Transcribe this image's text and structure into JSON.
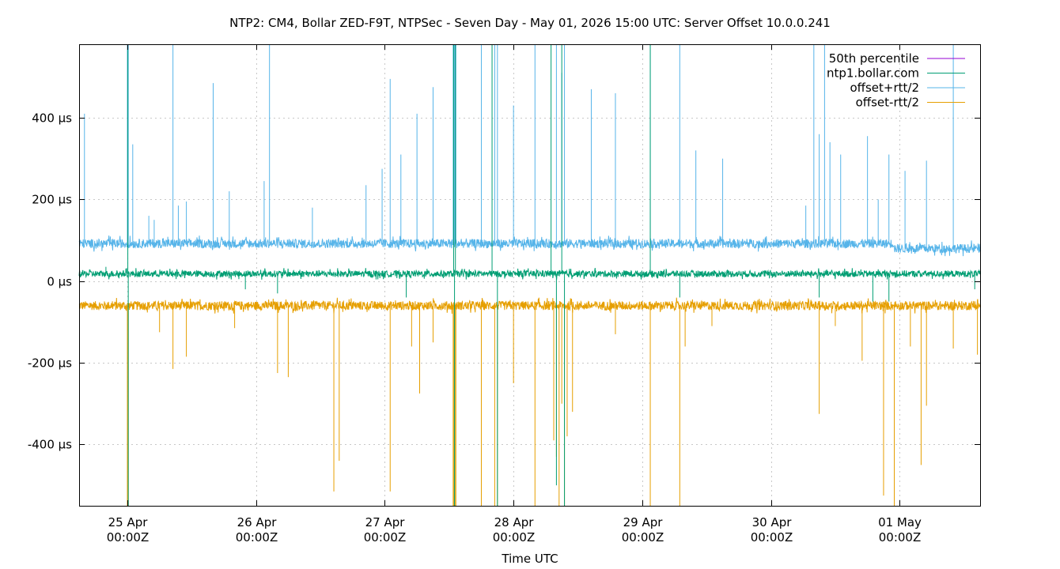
{
  "chart_data": {
    "type": "line",
    "title": "NTP2: CM4, Bollar ZED-F9T, NTPSec - Seven Day - May 01, 2026 15:00 UTC: Server Offset 10.0.0.241",
    "xlabel": "Time UTC",
    "ylabel": "",
    "x_range": [
      "2026-04-24T15:00Z",
      "2026-05-01T15:00Z"
    ],
    "ylim": [
      -550,
      580
    ],
    "y_unit": "µs",
    "y_ticks": [
      {
        "value": 400,
        "label": "400 µs"
      },
      {
        "value": 200,
        "label": "200 µs"
      },
      {
        "value": 0,
        "label": "0 µs"
      },
      {
        "value": -200,
        "label": "-200 µs"
      },
      {
        "value": -400,
        "label": "-400 µs"
      }
    ],
    "x_ticks": [
      {
        "t": "2026-04-25T00:00Z",
        "date": "25 Apr",
        "time": "00:00Z"
      },
      {
        "t": "2026-04-26T00:00Z",
        "date": "26 Apr",
        "time": "00:00Z"
      },
      {
        "t": "2026-04-27T00:00Z",
        "date": "27 Apr",
        "time": "00:00Z"
      },
      {
        "t": "2026-04-28T00:00Z",
        "date": "28 Apr",
        "time": "00:00Z"
      },
      {
        "t": "2026-04-29T00:00Z",
        "date": "29 Apr",
        "time": "00:00Z"
      },
      {
        "t": "2026-04-30T00:00Z",
        "date": "30 Apr",
        "time": "00:00Z"
      },
      {
        "t": "2026-05-01T00:00Z",
        "date": "01 May",
        "time": "00:00Z"
      }
    ],
    "grid": true,
    "legend_position": "top-right",
    "colors": {
      "p50": "#9400d3",
      "ntp1": "#009e73",
      "plus": "#56b4e9",
      "minus": "#e69f00",
      "grid": "#c8c8c8"
    },
    "series": [
      {
        "key": "p50",
        "name": "50th percentile",
        "style": "line-legend-only"
      },
      {
        "key": "ntp1",
        "name": "ntp1.bollar.com",
        "style": "noise-band",
        "baseline": 18,
        "noise": 8,
        "spikes": [
          {
            "t": "2026-04-24T20:00Z",
            "y": 35
          },
          {
            "t": "2026-04-25T00:05Z",
            "y": 580
          },
          {
            "t": "2026-04-25T00:10Z",
            "y": -550
          },
          {
            "t": "2026-04-25T22:00Z",
            "y": -20
          },
          {
            "t": "2026-04-26T04:00Z",
            "y": -30
          },
          {
            "t": "2026-04-27T04:00Z",
            "y": -40
          },
          {
            "t": "2026-04-27T12:50Z",
            "y": 580
          },
          {
            "t": "2026-04-27T13:00Z",
            "y": -550
          },
          {
            "t": "2026-04-27T13:10Z",
            "y": 580
          },
          {
            "t": "2026-04-27T20:00Z",
            "y": 580
          },
          {
            "t": "2026-04-27T21:00Z",
            "y": -550
          },
          {
            "t": "2026-04-28T07:00Z",
            "y": 580
          },
          {
            "t": "2026-04-28T08:00Z",
            "y": -500
          },
          {
            "t": "2026-04-28T09:00Z",
            "y": 580
          },
          {
            "t": "2026-04-28T09:30Z",
            "y": -550
          },
          {
            "t": "2026-04-29T01:30Z",
            "y": 580
          },
          {
            "t": "2026-04-29T07:00Z",
            "y": -40
          },
          {
            "t": "2026-04-30T09:00Z",
            "y": -40
          },
          {
            "t": "2026-04-30T19:00Z",
            "y": -50
          },
          {
            "t": "2026-04-30T22:00Z",
            "y": -50
          },
          {
            "t": "2026-05-01T14:00Z",
            "y": -20
          }
        ]
      },
      {
        "key": "plus",
        "name": "offset+rtt/2",
        "style": "noise-band",
        "baseline": 92,
        "baseline_after": {
          "t": "2026-04-30T23:00Z",
          "value": 80
        },
        "noise": 11,
        "spikes": [
          {
            "t": "2026-04-24T16:00Z",
            "y": 410
          },
          {
            "t": "2026-04-25T00:00Z",
            "y": 580
          },
          {
            "t": "2026-04-25T00:10Z",
            "y": 580
          },
          {
            "t": "2026-04-25T01:00Z",
            "y": 335
          },
          {
            "t": "2026-04-25T04:00Z",
            "y": 160
          },
          {
            "t": "2026-04-25T05:00Z",
            "y": 150
          },
          {
            "t": "2026-04-25T08:30Z",
            "y": 580
          },
          {
            "t": "2026-04-25T09:30Z",
            "y": 185
          },
          {
            "t": "2026-04-25T11:00Z",
            "y": 195
          },
          {
            "t": "2026-04-25T16:00Z",
            "y": 485
          },
          {
            "t": "2026-04-25T19:00Z",
            "y": 220
          },
          {
            "t": "2026-04-26T01:30Z",
            "y": 245
          },
          {
            "t": "2026-04-26T02:30Z",
            "y": 580
          },
          {
            "t": "2026-04-26T10:30Z",
            "y": 180
          },
          {
            "t": "2026-04-26T20:30Z",
            "y": 235
          },
          {
            "t": "2026-04-26T23:30Z",
            "y": 275
          },
          {
            "t": "2026-04-27T01:00Z",
            "y": 495
          },
          {
            "t": "2026-04-27T03:00Z",
            "y": 310
          },
          {
            "t": "2026-04-27T06:00Z",
            "y": 410
          },
          {
            "t": "2026-04-27T09:00Z",
            "y": 475
          },
          {
            "t": "2026-04-27T12:45Z",
            "y": 580
          },
          {
            "t": "2026-04-27T12:55Z",
            "y": 580
          },
          {
            "t": "2026-04-27T13:05Z",
            "y": 580
          },
          {
            "t": "2026-04-27T13:15Z",
            "y": 580
          },
          {
            "t": "2026-04-27T18:00Z",
            "y": 580
          },
          {
            "t": "2026-04-27T20:30Z",
            "y": 580
          },
          {
            "t": "2026-04-27T21:00Z",
            "y": 580
          },
          {
            "t": "2026-04-28T00:00Z",
            "y": 430
          },
          {
            "t": "2026-04-28T04:00Z",
            "y": 580
          },
          {
            "t": "2026-04-28T08:00Z",
            "y": 580
          },
          {
            "t": "2026-04-28T09:00Z",
            "y": 510
          },
          {
            "t": "2026-04-28T09:30Z",
            "y": 580
          },
          {
            "t": "2026-04-28T14:30Z",
            "y": 470
          },
          {
            "t": "2026-04-28T19:00Z",
            "y": 460
          },
          {
            "t": "2026-04-29T01:30Z",
            "y": 580
          },
          {
            "t": "2026-04-29T07:00Z",
            "y": 580
          },
          {
            "t": "2026-04-29T10:00Z",
            "y": 320
          },
          {
            "t": "2026-04-29T15:00Z",
            "y": 300
          },
          {
            "t": "2026-04-30T06:30Z",
            "y": 185
          },
          {
            "t": "2026-04-30T08:00Z",
            "y": 580
          },
          {
            "t": "2026-04-30T09:00Z",
            "y": 360
          },
          {
            "t": "2026-04-30T10:00Z",
            "y": 580
          },
          {
            "t": "2026-04-30T11:00Z",
            "y": 340
          },
          {
            "t": "2026-04-30T13:00Z",
            "y": 310
          },
          {
            "t": "2026-04-30T18:00Z",
            "y": 355
          },
          {
            "t": "2026-04-30T20:00Z",
            "y": 200
          },
          {
            "t": "2026-04-30T22:00Z",
            "y": 310
          },
          {
            "t": "2026-05-01T01:00Z",
            "y": 270
          },
          {
            "t": "2026-05-01T05:00Z",
            "y": 295
          },
          {
            "t": "2026-05-01T10:00Z",
            "y": 580
          }
        ]
      },
      {
        "key": "minus",
        "name": "offset-rtt/2",
        "style": "noise-band",
        "baseline": -60,
        "noise": 11,
        "spikes": [
          {
            "t": "2026-04-25T00:00Z",
            "y": -550
          },
          {
            "t": "2026-04-25T00:10Z",
            "y": -550
          },
          {
            "t": "2026-04-25T06:00Z",
            "y": -125
          },
          {
            "t": "2026-04-25T08:30Z",
            "y": -215
          },
          {
            "t": "2026-04-25T11:00Z",
            "y": -185
          },
          {
            "t": "2026-04-25T20:00Z",
            "y": -115
          },
          {
            "t": "2026-04-26T04:00Z",
            "y": -225
          },
          {
            "t": "2026-04-26T06:00Z",
            "y": -235
          },
          {
            "t": "2026-04-26T14:30Z",
            "y": -515
          },
          {
            "t": "2026-04-26T15:30Z",
            "y": -440
          },
          {
            "t": "2026-04-27T01:00Z",
            "y": -515
          },
          {
            "t": "2026-04-27T05:00Z",
            "y": -160
          },
          {
            "t": "2026-04-27T06:30Z",
            "y": -275
          },
          {
            "t": "2026-04-27T09:00Z",
            "y": -150
          },
          {
            "t": "2026-04-27T12:45Z",
            "y": -550
          },
          {
            "t": "2026-04-27T12:55Z",
            "y": -550
          },
          {
            "t": "2026-04-27T13:05Z",
            "y": -550
          },
          {
            "t": "2026-04-27T13:15Z",
            "y": -550
          },
          {
            "t": "2026-04-27T18:00Z",
            "y": -550
          },
          {
            "t": "2026-04-27T20:30Z",
            "y": -550
          },
          {
            "t": "2026-04-27T21:00Z",
            "y": -550
          },
          {
            "t": "2026-04-28T00:00Z",
            "y": -250
          },
          {
            "t": "2026-04-28T04:00Z",
            "y": -550
          },
          {
            "t": "2026-04-28T07:30Z",
            "y": -390
          },
          {
            "t": "2026-04-28T08:00Z",
            "y": -430
          },
          {
            "t": "2026-04-28T08:30Z",
            "y": -550
          },
          {
            "t": "2026-04-28T09:00Z",
            "y": -300
          },
          {
            "t": "2026-04-28T09:30Z",
            "y": -550
          },
          {
            "t": "2026-04-28T10:00Z",
            "y": -380
          },
          {
            "t": "2026-04-28T11:00Z",
            "y": -320
          },
          {
            "t": "2026-04-28T19:00Z",
            "y": -130
          },
          {
            "t": "2026-04-29T01:30Z",
            "y": -550
          },
          {
            "t": "2026-04-29T07:00Z",
            "y": -550
          },
          {
            "t": "2026-04-29T08:00Z",
            "y": -160
          },
          {
            "t": "2026-04-29T13:00Z",
            "y": -110
          },
          {
            "t": "2026-04-30T09:00Z",
            "y": -325
          },
          {
            "t": "2026-04-30T12:00Z",
            "y": -110
          },
          {
            "t": "2026-04-30T17:00Z",
            "y": -195
          },
          {
            "t": "2026-04-30T21:00Z",
            "y": -525
          },
          {
            "t": "2026-04-30T23:00Z",
            "y": -550
          },
          {
            "t": "2026-05-01T02:00Z",
            "y": -160
          },
          {
            "t": "2026-05-01T04:00Z",
            "y": -450
          },
          {
            "t": "2026-05-01T05:00Z",
            "y": -305
          },
          {
            "t": "2026-05-01T10:00Z",
            "y": -165
          },
          {
            "t": "2026-05-01T14:30Z",
            "y": -180
          }
        ]
      }
    ]
  }
}
